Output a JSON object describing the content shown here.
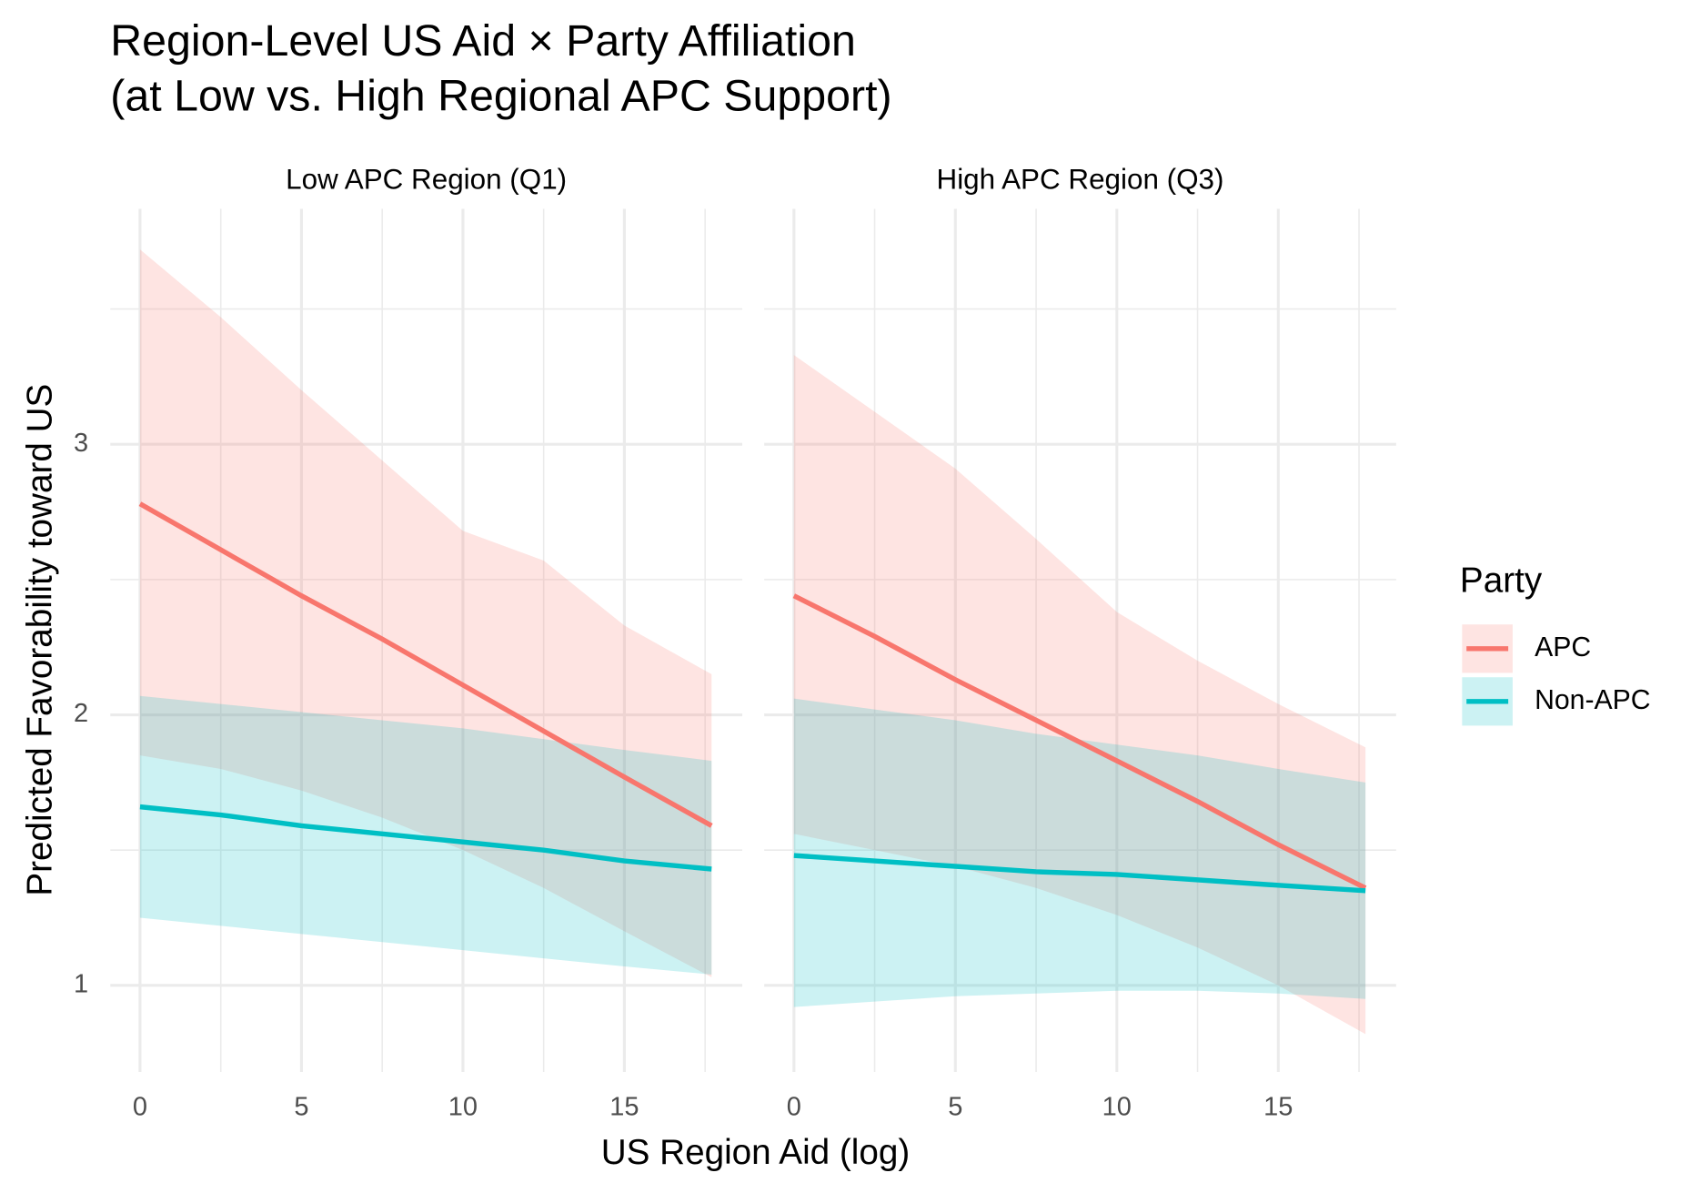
{
  "chart_data": {
    "type": "line",
    "title": [
      "Region-Level US Aid × Party Affiliation",
      "(at Low vs. High Regional APC Support)"
    ],
    "xlabel": "US Region Aid (log)",
    "ylabel": "Predicted Favorability toward US",
    "legend_title": "Party",
    "legend_position": "right",
    "grid": true,
    "x": [
      0,
      2.5,
      5,
      7.5,
      10,
      12.5,
      15,
      17.7
    ],
    "xlim": [
      -0.92,
      18.65
    ],
    "xticks": [
      0,
      5,
      10,
      15
    ],
    "ylim": [
      0.68,
      3.87
    ],
    "yticks": [
      1,
      2,
      3
    ],
    "facets": [
      {
        "title": "Low APC Region (Q1)",
        "series": [
          {
            "name": "APC",
            "color": "#F8766D",
            "values": [
              2.78,
              2.61,
              2.44,
              2.28,
              2.11,
              1.94,
              1.77,
              1.59
            ],
            "lower": [
              1.85,
              1.8,
              1.72,
              1.62,
              1.5,
              1.36,
              1.2,
              1.03
            ],
            "upper": [
              3.72,
              3.47,
              3.2,
              2.94,
              2.68,
              2.57,
              2.33,
              2.15
            ]
          },
          {
            "name": "Non-APC",
            "color": "#00BFC4",
            "values": [
              1.66,
              1.63,
              1.59,
              1.56,
              1.53,
              1.5,
              1.46,
              1.43
            ],
            "lower": [
              1.25,
              1.22,
              1.19,
              1.16,
              1.13,
              1.1,
              1.07,
              1.04
            ],
            "upper": [
              2.07,
              2.04,
              2.01,
              1.98,
              1.95,
              1.91,
              1.87,
              1.83
            ]
          }
        ]
      },
      {
        "title": "High APC Region (Q3)",
        "series": [
          {
            "name": "APC",
            "color": "#F8766D",
            "values": [
              2.44,
              2.29,
              2.13,
              1.98,
              1.83,
              1.68,
              1.52,
              1.36
            ],
            "lower": [
              1.56,
              1.5,
              1.44,
              1.36,
              1.26,
              1.14,
              1.0,
              0.82
            ],
            "upper": [
              3.33,
              3.12,
              2.91,
              2.65,
              2.38,
              2.2,
              2.04,
              1.88
            ]
          },
          {
            "name": "Non-APC",
            "color": "#00BFC4",
            "values": [
              1.48,
              1.46,
              1.44,
              1.42,
              1.41,
              1.39,
              1.37,
              1.35
            ],
            "lower": [
              0.92,
              0.94,
              0.96,
              0.97,
              0.98,
              0.98,
              0.97,
              0.95
            ],
            "upper": [
              2.06,
              2.02,
              1.98,
              1.93,
              1.89,
              1.85,
              1.8,
              1.75
            ]
          }
        ]
      }
    ]
  }
}
